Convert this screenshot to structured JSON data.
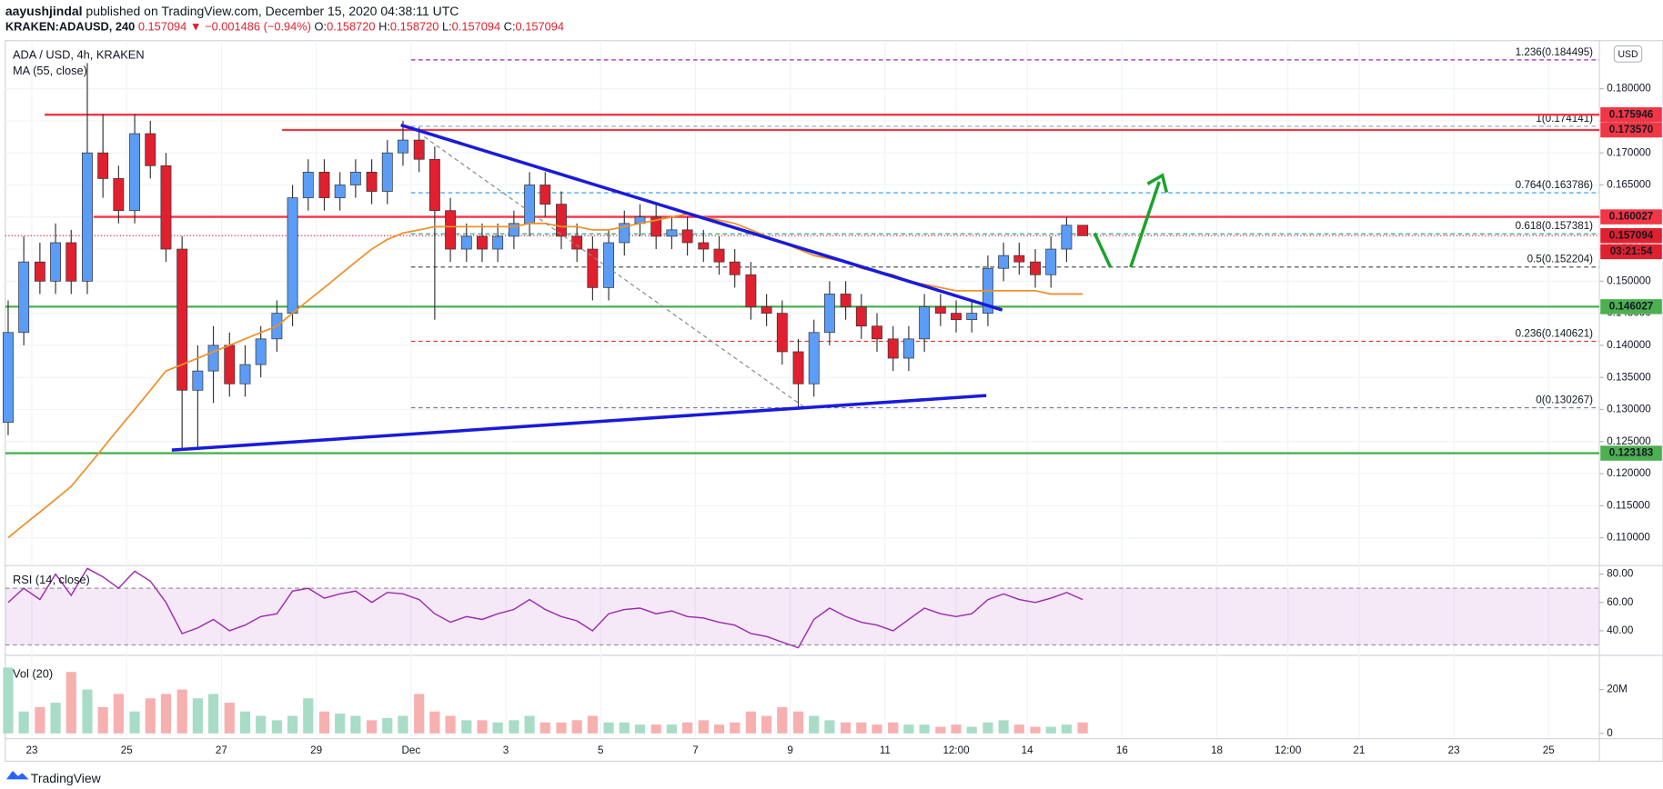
{
  "header": {
    "author": "aayushjindal",
    "published": " published on TradingView.com, December 15, 2020 04:38:11 UTC",
    "symbol": "KRAKEN:ADAUSD, 240",
    "change": "0.157094 ▼ −0.001486 (−0.94%)",
    "quote": [
      {
        "k": "O:",
        "v": "0.158720"
      },
      {
        "k": "H:",
        "v": "0.158720"
      },
      {
        "k": "L:",
        "v": "0.157094"
      },
      {
        "k": "C:",
        "v": "0.157094"
      }
    ]
  },
  "footer": "TradingView",
  "chart_data": {
    "type": "candlestick",
    "title": "ADA / USD, 4h, KRAKEN",
    "currency": "USD",
    "up_color": "#5b9cf6",
    "down_color": "#e0202e",
    "x": [
      -0.5,
      -0.17,
      0.17,
      0.5,
      0.83,
      1.17,
      1.5,
      1.83,
      2.17,
      2.5,
      2.83,
      3.17,
      3.5,
      3.83,
      4.17,
      4.5,
      4.83,
      5.17,
      5.5,
      5.83,
      6.17,
      6.5,
      6.83,
      7.17,
      7.5,
      7.83,
      8.17,
      8.5,
      8.83,
      9.17,
      9.5,
      9.83,
      10.17,
      10.5,
      10.83,
      11.17,
      11.5,
      11.83,
      12.17,
      12.5,
      12.83,
      13.17,
      13.5,
      13.83,
      14.17,
      14.5,
      14.83,
      15.17,
      15.5,
      15.83,
      16.17,
      16.5,
      16.83,
      17.17,
      17.5,
      17.83,
      18.17,
      18.5,
      18.83,
      19.17,
      19.5,
      19.83,
      20.17,
      20.5,
      20.83,
      21.17,
      21.5,
      21.83,
      22.17
    ],
    "open": [
      0.128,
      0.142,
      0.153,
      0.15,
      0.156,
      0.15,
      0.17,
      0.166,
      0.161,
      0.173,
      0.168,
      0.155,
      0.133,
      0.136,
      0.14,
      0.134,
      0.137,
      0.141,
      0.145,
      0.163,
      0.167,
      0.163,
      0.165,
      0.167,
      0.164,
      0.17,
      0.172,
      0.169,
      0.161,
      0.155,
      0.157,
      0.155,
      0.157,
      0.159,
      0.165,
      0.162,
      0.157,
      0.155,
      0.149,
      0.156,
      0.159,
      0.16,
      0.157,
      0.158,
      0.156,
      0.155,
      0.153,
      0.151,
      0.146,
      0.145,
      0.139,
      0.134,
      0.142,
      0.148,
      0.146,
      0.143,
      0.141,
      0.138,
      0.141,
      0.146,
      0.145,
      0.144,
      0.145,
      0.152,
      0.154,
      0.153,
      0.151,
      0.155,
      0.15872
    ],
    "high": [
      0.147,
      0.157,
      0.156,
      0.159,
      0.158,
      0.184,
      0.176,
      0.168,
      0.176,
      0.175,
      0.17,
      0.157,
      0.14,
      0.143,
      0.142,
      0.14,
      0.143,
      0.147,
      0.165,
      0.169,
      0.169,
      0.167,
      0.169,
      0.169,
      0.172,
      0.175,
      0.174,
      0.171,
      0.163,
      0.159,
      0.159,
      0.159,
      0.161,
      0.167,
      0.167,
      0.164,
      0.159,
      0.157,
      0.158,
      0.161,
      0.162,
      0.162,
      0.16,
      0.16,
      0.158,
      0.157,
      0.155,
      0.153,
      0.148,
      0.147,
      0.141,
      0.144,
      0.15,
      0.15,
      0.148,
      0.145,
      0.143,
      0.143,
      0.148,
      0.148,
      0.147,
      0.147,
      0.154,
      0.156,
      0.156,
      0.155,
      0.157,
      0.16,
      0.15872
    ],
    "low": [
      0.126,
      0.14,
      0.148,
      0.148,
      0.148,
      0.148,
      0.163,
      0.159,
      0.159,
      0.166,
      0.153,
      0.124,
      0.124,
      0.131,
      0.132,
      0.132,
      0.135,
      0.139,
      0.143,
      0.161,
      0.161,
      0.161,
      0.163,
      0.162,
      0.162,
      0.168,
      0.167,
      0.144,
      0.153,
      0.153,
      0.153,
      0.153,
      0.155,
      0.157,
      0.16,
      0.155,
      0.153,
      0.147,
      0.147,
      0.154,
      0.157,
      0.155,
      0.155,
      0.154,
      0.153,
      0.151,
      0.149,
      0.144,
      0.143,
      0.137,
      0.13,
      0.132,
      0.14,
      0.144,
      0.141,
      0.139,
      0.136,
      0.136,
      0.139,
      0.143,
      0.142,
      0.142,
      0.143,
      0.15,
      0.151,
      0.149,
      0.149,
      0.153,
      0.157094
    ],
    "close": [
      0.142,
      0.153,
      0.15,
      0.156,
      0.15,
      0.17,
      0.166,
      0.161,
      0.173,
      0.168,
      0.155,
      0.133,
      0.136,
      0.14,
      0.134,
      0.137,
      0.141,
      0.145,
      0.163,
      0.167,
      0.163,
      0.165,
      0.167,
      0.164,
      0.17,
      0.172,
      0.169,
      0.161,
      0.155,
      0.157,
      0.155,
      0.157,
      0.159,
      0.165,
      0.162,
      0.157,
      0.155,
      0.149,
      0.156,
      0.159,
      0.16,
      0.157,
      0.158,
      0.156,
      0.155,
      0.153,
      0.151,
      0.146,
      0.145,
      0.139,
      0.134,
      0.142,
      0.148,
      0.146,
      0.143,
      0.141,
      0.138,
      0.141,
      0.146,
      0.145,
      0.144,
      0.145,
      0.152,
      0.154,
      0.153,
      0.151,
      0.155,
      0.15872,
      0.157094
    ],
    "ma": {
      "name": "MA (55, close)",
      "color": "#f0902a",
      "values": [
        0.11,
        0.112,
        0.114,
        0.116,
        0.118,
        0.121,
        0.124,
        0.127,
        0.13,
        0.133,
        0.136,
        0.137,
        0.138,
        0.139,
        0.14,
        0.141,
        0.142,
        0.143,
        0.145,
        0.147,
        0.149,
        0.151,
        0.153,
        0.155,
        0.1565,
        0.1575,
        0.158,
        0.1585,
        0.1585,
        0.1585,
        0.1585,
        0.1585,
        0.1585,
        0.159,
        0.159,
        0.1585,
        0.1585,
        0.158,
        0.158,
        0.1585,
        0.159,
        0.1595,
        0.16,
        0.1605,
        0.16,
        0.1595,
        0.159,
        0.158,
        0.157,
        0.156,
        0.155,
        0.154,
        0.1535,
        0.153,
        0.152,
        0.1515,
        0.151,
        0.15,
        0.1495,
        0.149,
        0.1485,
        0.1485,
        0.1485,
        0.1485,
        0.1485,
        0.1485,
        0.148,
        0.148,
        0.148
      ]
    },
    "xlim": [
      -0.56,
      33.07
    ],
    "xticks": [
      {
        "value": 0,
        "label": "23"
      },
      {
        "value": 2,
        "label": "25"
      },
      {
        "value": 4,
        "label": "27"
      },
      {
        "value": 6,
        "label": "29"
      },
      {
        "value": 8,
        "label": "Dec"
      },
      {
        "value": 10,
        "label": "3"
      },
      {
        "value": 12,
        "label": "5"
      },
      {
        "value": 14,
        "label": "7"
      },
      {
        "value": 16,
        "label": "9"
      },
      {
        "value": 18,
        "label": "11"
      },
      {
        "value": 19.5,
        "label": "12:00"
      },
      {
        "value": 21,
        "label": "14"
      },
      {
        "value": 23,
        "label": "16"
      },
      {
        "value": 25,
        "label": "18"
      },
      {
        "value": 26.5,
        "label": "12:00"
      },
      {
        "value": 28,
        "label": "21"
      },
      {
        "value": 30,
        "label": "23"
      },
      {
        "value": 32,
        "label": "25"
      }
    ],
    "ylim": [
      0.106,
      0.1875
    ],
    "yticks": [
      {
        "value": 0.11,
        "label": "0.110000"
      },
      {
        "value": 0.115,
        "label": "0.115000"
      },
      {
        "value": 0.12,
        "label": "0.120000"
      },
      {
        "value": 0.125,
        "label": "0.125000"
      },
      {
        "value": 0.13,
        "label": "0.130000"
      },
      {
        "value": 0.135,
        "label": "0.135000"
      },
      {
        "value": 0.14,
        "label": "0.140000"
      },
      {
        "value": 0.145,
        "label": "0.145000"
      },
      {
        "value": 0.15,
        "label": "0.150000"
      },
      {
        "value": 0.155,
        "label": "0.155000"
      },
      {
        "value": 0.16,
        "label": "0.160000"
      },
      {
        "value": 0.165,
        "label": "0.165000"
      },
      {
        "value": 0.17,
        "label": "0.170000"
      },
      {
        "value": 0.175,
        "label": "0.175000"
      },
      {
        "value": 0.18,
        "label": "0.180000"
      }
    ],
    "grid": true,
    "levels": [
      {
        "value": 0.175946,
        "label": "0.175946",
        "color": "#f23645",
        "from": 0.27
      },
      {
        "value": 0.17357,
        "label": "0.173570",
        "color": "#f23645",
        "from": 5.28
      },
      {
        "value": 0.160027,
        "label": "0.160027",
        "color": "#f23645",
        "from": 1.3
      },
      {
        "value": 0.146027,
        "label": "0.146027",
        "color": "#4caf50"
      },
      {
        "value": 0.123183,
        "label": "0.123183",
        "color": "#4caf50"
      }
    ],
    "fib_from": 8,
    "fib": [
      {
        "value": 0.184495,
        "label": "1.236(0.184495)",
        "color": "#9c27b0"
      },
      {
        "value": 0.174141,
        "label": "1(0.174141)",
        "color": "#7fa7c9"
      },
      {
        "value": 0.163786,
        "label": "0.764(0.163786)",
        "color": "#2196f3"
      },
      {
        "value": 0.157381,
        "label": "0.618(0.157381)",
        "color": "#26a69a"
      },
      {
        "value": 0.152204,
        "label": "0.5(0.152204)",
        "color": "#555555"
      },
      {
        "value": 0.140621,
        "label": "0.236(0.140621)",
        "color": "#e53935"
      },
      {
        "value": 0.130267,
        "label": "0(0.130267)",
        "color": "#787b86"
      }
    ],
    "last": {
      "value": 0.157094,
      "label": "0.157094",
      "countdown": "03:21:54",
      "color": "#e0202e"
    },
    "rsi": {
      "name": "RSI (14, close)",
      "color": "#9c27b0",
      "band": [
        30,
        70
      ],
      "ylim": [
        23.4,
        84.5
      ],
      "yticks": [
        {
          "value": 40,
          "label": "40.00"
        },
        {
          "value": 60,
          "label": "60.00"
        },
        {
          "value": 80,
          "label": "80.00"
        }
      ],
      "values": [
        60,
        70,
        62,
        80,
        65,
        84,
        78,
        70,
        82,
        75,
        60,
        38,
        42,
        48,
        40,
        44,
        50,
        52,
        68,
        70,
        63,
        66,
        68,
        60,
        67,
        66,
        62,
        52,
        46,
        50,
        48,
        52,
        55,
        62,
        55,
        50,
        47,
        40,
        52,
        55,
        56,
        52,
        54,
        50,
        49,
        46,
        44,
        38,
        36,
        32,
        28,
        48,
        56,
        50,
        46,
        44,
        40,
        48,
        56,
        52,
        50,
        52,
        62,
        66,
        62,
        60,
        63,
        67,
        62
      ]
    },
    "volume": {
      "name": "Vol (20)",
      "up_color": "#a8dcc6",
      "down_color": "#f6b0b0",
      "ylim": [
        -1950000,
        34600000
      ],
      "yticks": [
        0,
        {
          "value": 20000000,
          "label": "20M"
        }
      ],
      "values": [
        30000000,
        10000000,
        12000000,
        14000000,
        28000000,
        20000000,
        12000000,
        18000000,
        10000000,
        16000000,
        18000000,
        20000000,
        16000000,
        18000000,
        14000000,
        10000000,
        8000000,
        6000000,
        8000000,
        16000000,
        10000000,
        9000000,
        8000000,
        6000000,
        7000000,
        8000000,
        18000000,
        10000000,
        8000000,
        6000000,
        6000000,
        5000000,
        6000000,
        8000000,
        5000000,
        5000000,
        6000000,
        8000000,
        5000000,
        5000000,
        4000000,
        4000000,
        4000000,
        5000000,
        6000000,
        4000000,
        5000000,
        10000000,
        8000000,
        12000000,
        10000000,
        8000000,
        6000000,
        5000000,
        5000000,
        4000000,
        5000000,
        4000000,
        4000000,
        3000000,
        4000000,
        3000000,
        5000000,
        6000000,
        4000000,
        3000000,
        3000000,
        4000000,
        5000000
      ]
    }
  }
}
